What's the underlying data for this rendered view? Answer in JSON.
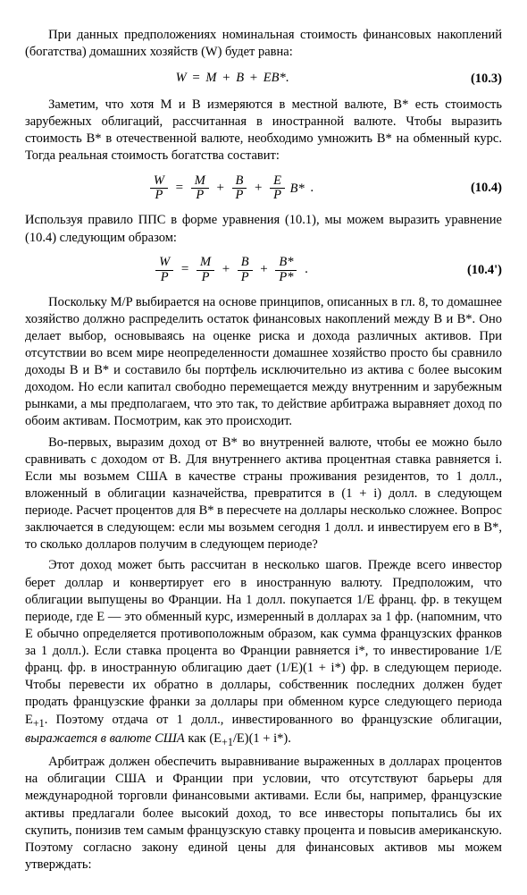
{
  "p1": "При данных предположениях номинальная стоимость финансовых накоплений (богатства) домашних хозяйств (W) будет равна:",
  "eq103": {
    "W": "W",
    "eq": "=",
    "M": "M",
    "p": "+",
    "B": "B",
    "E": "EB*",
    "dot": ".",
    "num": "(10.3)"
  },
  "p2": "Заметим, что хотя M и B измеряются в местной валюте, B* есть сто­имость зарубежных облигаций, рассчитанная в иностранной валюте. Что­бы выразить стоимость B* в отечественной валюте, необходимо умножить B* на обменный курс. Тогда реальная стоимость богатства составит:",
  "eq104": {
    "W": "W",
    "P": "P",
    "eq": "=",
    "M": "M",
    "p": "+",
    "B": "B",
    "E": "E",
    "Bs": "B*",
    "dot": ".",
    "num": "(10.4)"
  },
  "p3": "Используя правило ППС в форме уравнения (10.1), мы можем выразить уравнение (10.4) следующим образом:",
  "eq104p": {
    "W": "W",
    "P": "P",
    "eq": "=",
    "M": "M",
    "p": "+",
    "B": "B",
    "Bs": "B*",
    "Ps": "P*",
    "dot": ".",
    "num": "(10.4')"
  },
  "p4": "Поскольку M/P выбирается на основе принципов, описанных в гл. 8, то домашнее хозяйство должно распределить остаток финансовых накоп­лений между B и B*. Оно делает выбор, основываясь на оценке риска и дохода различных активов. При отсутствии во всем мире неопределенно­сти домашнее хозяйство просто бы сравнило доходы B и B* и составило бы портфель исключительно из актива с более высоким доходом. Но если капитал свободно перемещается между внутренним и зарубежным рынка­ми, а мы предполагаем, что это так, то действие арбитража выравняет до­ход по обоим активам. Посмотрим, как это происходит.",
  "p5": "Во-первых, выразим доход от B* во внутренней валюте, чтобы ее можно было сравнивать с доходом от B. Для внутреннего актива процент­ная ставка равняется i. Если мы возьмем США в качестве страны прожи­вания резидентов, то 1 долл., вложенный в облигации казначейства, пре­вратится в (1 + i) долл. в следующем периоде. Расчет процентов для B* в пересчете на доллары несколько сложнее. Вопрос заключается в следую­щем: если мы возьмем сегодня 1 долл. и инвестируем его в B*, то сколько долларов получим в следующем периоде?",
  "p6a": "Этот доход может быть рассчитан в несколько шагов. Прежде всего инвестор берет доллар и конвертирует его в иностранную валюту. Предпо­ложим, что облигации выпущены во Франции. На 1 долл. покупается 1/E франц. фр. в текущем периоде, где E — это обменный курс, измерен­ный в долларах за 1 фр. (напомним, что E обычно определяется противо­положным образом, как сумма французских франков за 1 долл.). Если ставка процента во Франции равняется i*, то инвестирование 1/E франц. фр. в иностранную облигацию дает (1/E)(1 + i*) фр. в следующем периоде. Чтобы перевести их обратно в доллары, собственник последних должен будет продать французские франки за доллары при обменном курсе следу­ющего периода E",
  "p6sub1": "+1",
  "p6b": ". Поэтому отдача от 1 долл., инвестированного во французские облигации, ",
  "p6i": "выражается в валюте США",
  "p6c": " как (E",
  "p6sub2": "+1",
  "p6d": "/E)(1 + i*).",
  "p7": "Арбитраж должен обеспечить выравнивание выраженных в долларах процентов на облигации США и Франции при условии, что отсутствуют барьеры для международной торговли финансовыми активами. Если бы, например, французские активы предлагали более высокий доход, то все инвесторы попытались бы их скупить, понизив тем самым французскую ставку процента и повысив американскую. Поэтому согласно закону еди­ной цены для финансовых активов мы можем утверждать:"
}
